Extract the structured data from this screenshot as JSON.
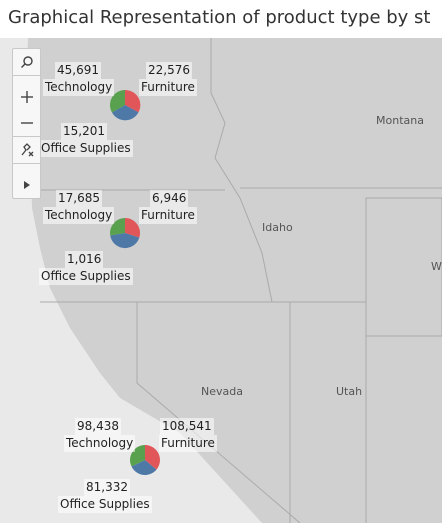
{
  "title": "Graphical Representation of product type by st",
  "map": {
    "state_labels": {
      "montana": "Montana",
      "idaho": "Idaho",
      "nevada": "Nevada",
      "utah": "Utah",
      "wyoming": "W"
    },
    "pies": [
      {
        "tech_value": "45,691",
        "tech_label": "Technology",
        "furn_value": "22,576",
        "furn_label": "Furniture",
        "office_value": "15,201",
        "office_label": "Office Supplies"
      },
      {
        "tech_value": "17,685",
        "tech_label": "Technology",
        "furn_value": "6,946",
        "furn_label": "Furniture",
        "office_value": "1,016",
        "office_label": "Office Supplies"
      },
      {
        "tech_value": "98,438",
        "tech_label": "Technology",
        "furn_value": "108,541",
        "furn_label": "Furniture",
        "office_value": "81,332",
        "office_label": "Office Supplies"
      }
    ]
  },
  "colors": {
    "technology": "#59a14f",
    "furniture": "#e15759",
    "office_supplies": "#4e79a7"
  },
  "icons": {
    "search": "search-icon",
    "zoom_in": "plus-icon",
    "zoom_out": "minus-icon",
    "pin": "pin-icon",
    "expand": "play-icon"
  }
}
